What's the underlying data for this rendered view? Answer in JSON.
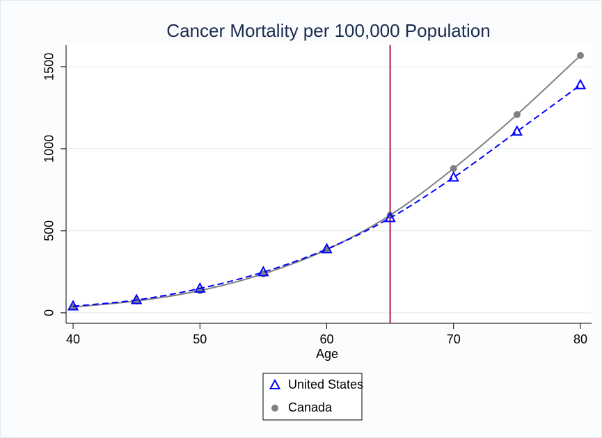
{
  "chart_data": {
    "type": "line",
    "title": "Cancer Mortality per 100,000 Population",
    "xlabel": "Age",
    "x": [
      40,
      45,
      50,
      55,
      60,
      65,
      70,
      75,
      80
    ],
    "series": [
      {
        "name": "United States",
        "color": "#0000ff",
        "marker": "triangle",
        "dash": true,
        "values": [
          40,
          78,
          148,
          248,
          388,
          578,
          825,
          1105,
          1388
        ]
      },
      {
        "name": "Canada",
        "color": "#808080",
        "marker": "circle",
        "dash": false,
        "values": [
          35,
          72,
          135,
          237,
          385,
          595,
          880,
          1208,
          1568
        ]
      }
    ],
    "xlim": [
      39.45,
      80.88
    ],
    "ylim": [
      -64,
      1631
    ],
    "xticks": [
      40,
      50,
      60,
      70,
      80
    ],
    "yticks": [
      0,
      500,
      1000,
      1500
    ],
    "grid": true,
    "reference_line": {
      "x": 65,
      "color": "#b0163c"
    },
    "legend": "bottom"
  }
}
